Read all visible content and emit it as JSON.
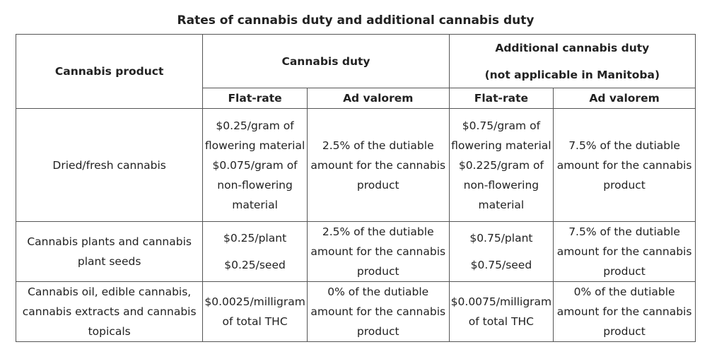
{
  "caption": "Rates of cannabis duty and additional cannabis duty",
  "header": {
    "product": "Cannabis product",
    "cannabis_duty": "Cannabis duty",
    "additional_duty_line1": "Additional cannabis duty",
    "additional_duty_line2": "(not applicable in Manitoba)",
    "flat_rate": "Flat-rate",
    "ad_valorem": "Ad valorem"
  },
  "rows": [
    {
      "product": "Dried/fresh cannabis",
      "cd_flat": [
        "$0.25/gram of",
        "flowering material",
        "$0.075/gram of",
        "non-flowering",
        "material"
      ],
      "cd_adv": [
        "2.5% of the dutiable",
        "amount for the cannabis",
        "product"
      ],
      "acd_flat": [
        "$0.75/gram of",
        "flowering material",
        "$0.225/gram of",
        "non-flowering",
        "material"
      ],
      "acd_adv": [
        "7.5% of the dutiable",
        "amount for the cannabis",
        "product"
      ]
    },
    {
      "product": [
        "Cannabis plants and cannabis",
        "plant seeds"
      ],
      "cd_flat": [
        "$0.25/plant",
        "$0.25/seed"
      ],
      "cd_adv": [
        "2.5% of the dutiable",
        "amount for the cannabis",
        "product"
      ],
      "acd_flat": [
        "$0.75/plant",
        "$0.75/seed"
      ],
      "acd_adv": [
        "7.5% of the dutiable",
        "amount for the cannabis",
        "product"
      ]
    },
    {
      "product": [
        "Cannabis oil, edible cannabis,",
        "cannabis extracts and cannabis",
        "topicals"
      ],
      "cd_flat": [
        "$0.0025/milligram",
        "of total THC"
      ],
      "cd_adv": [
        "0% of the dutiable",
        "amount for the cannabis",
        "product"
      ],
      "acd_flat": [
        "$0.0075/milligram",
        "of total THC"
      ],
      "acd_adv": [
        "0% of the dutiable",
        "amount for the cannabis",
        "product"
      ]
    }
  ]
}
